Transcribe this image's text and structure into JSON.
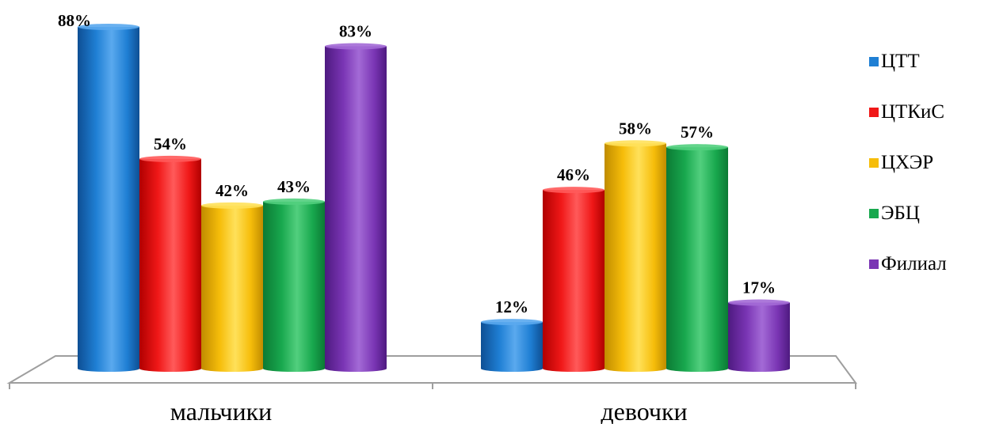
{
  "chart_data": {
    "type": "bar",
    "categories": [
      "мальчики",
      "девочки"
    ],
    "series": [
      {
        "name": "ЦТТ",
        "values": [
          88,
          12
        ],
        "color": "#1f7fd4",
        "dark": "#0e4f94",
        "light": "#5aa9ee"
      },
      {
        "name": "ЦТКиС",
        "values": [
          54,
          46
        ],
        "color": "#f01818",
        "dark": "#b00000",
        "light": "#ff5a5a"
      },
      {
        "name": "ЦХЭР",
        "values": [
          42,
          58
        ],
        "color": "#f6bd0a",
        "dark": "#c08c00",
        "light": "#ffe15a"
      },
      {
        "name": "ЭБЦ",
        "values": [
          43,
          57
        ],
        "color": "#18a84e",
        "dark": "#0c7a34",
        "light": "#52cf7e"
      },
      {
        "name": "Филиал",
        "values": [
          83,
          17
        ],
        "color": "#7a35b4",
        "dark": "#4e1a80",
        "light": "#a36ad6"
      }
    ],
    "value_format": "percent",
    "ylim": [
      0,
      88
    ],
    "grid": false,
    "legend": "right"
  }
}
